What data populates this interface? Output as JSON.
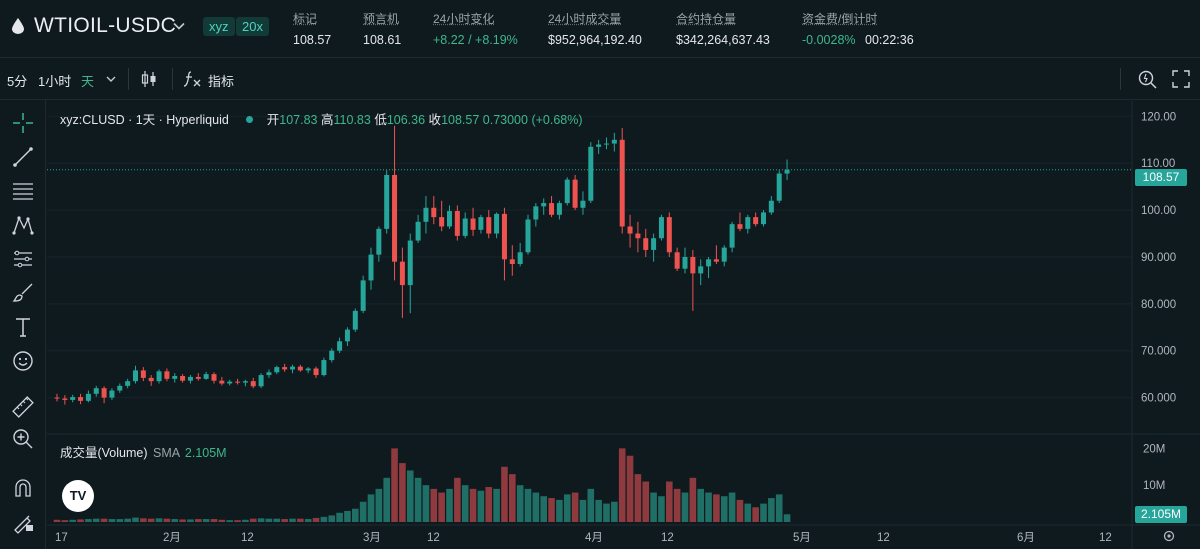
{
  "header": {
    "symbol": "WTIOIL-USDC",
    "badge_type": "xyz",
    "badge_leverage": "20x",
    "stats": [
      {
        "label": "标记",
        "value": "108.57"
      },
      {
        "label": "预言机",
        "value": "108.61"
      },
      {
        "label": "24小时变化",
        "value": "+8.22 / +8.19%"
      },
      {
        "label": "24小时成交量",
        "value": "$952,964,192.40"
      },
      {
        "label": "合约持仓量",
        "value": "$342,264,637.43"
      },
      {
        "label": "资金费/倒计时",
        "value": "-0.0028%",
        "value2": "00:22:36"
      }
    ]
  },
  "toolbar": {
    "interval_5m": "5分",
    "interval_1h": "1小时",
    "interval_day": "天",
    "indicators_label": "指标"
  },
  "legend": {
    "symbol": "xyz:CLUSD · 1天 · Hyperliquid",
    "open_label": "开",
    "open": "107.83",
    "high_label": "高",
    "high": "110.83",
    "low_label": "低",
    "low": "106.36",
    "close_label": "收",
    "close": "108.57",
    "change": "0.73000 (+0.68%)"
  },
  "volume": {
    "label": "成交量(Volume)",
    "sma_label": "SMA",
    "sma_value": "2.105M",
    "current_tag": "2.105M"
  },
  "price_tag": "108.57",
  "colors": {
    "up": "#26a69a",
    "down": "#ef5350",
    "bg": "#0f1a1f"
  },
  "tools": [
    "crosshair-icon",
    "trend-line-icon",
    "fib-icon",
    "pattern-icon",
    "measure-lines-icon",
    "brush-icon",
    "text-icon",
    "emoji-icon",
    "ruler-icon",
    "zoom-in-icon",
    "magnet-icon",
    "lock-draw-icon"
  ],
  "chart_data": {
    "type": "candlestick",
    "price_axis": {
      "ticks": [
        "120.00",
        "110.00",
        "100.00",
        "90.000",
        "80.000",
        "70.000",
        "60.000"
      ],
      "min": 55,
      "max": 122
    },
    "volume_axis": {
      "ticks": [
        "20M",
        "10M"
      ],
      "max": 22
    },
    "time_axis": {
      "ticks": [
        "17",
        "2月",
        "12",
        "3月",
        "12",
        "4月",
        "12",
        "5月",
        "12",
        "6月",
        "12"
      ]
    },
    "candles": [
      {
        "o": 60.0,
        "h": 60.8,
        "l": 59.2,
        "c": 59.8,
        "v": 0.6
      },
      {
        "o": 59.8,
        "h": 60.5,
        "l": 58.5,
        "c": 59.5,
        "v": 0.5
      },
      {
        "o": 59.5,
        "h": 60.6,
        "l": 59.0,
        "c": 60.1,
        "v": 0.6
      },
      {
        "o": 60.1,
        "h": 60.8,
        "l": 58.6,
        "c": 59.3,
        "v": 0.7
      },
      {
        "o": 59.3,
        "h": 61.5,
        "l": 59.0,
        "c": 60.8,
        "v": 0.8
      },
      {
        "o": 60.8,
        "h": 62.5,
        "l": 60.2,
        "c": 62.0,
        "v": 0.9
      },
      {
        "o": 62.0,
        "h": 62.4,
        "l": 58.8,
        "c": 60.0,
        "v": 0.9
      },
      {
        "o": 60.0,
        "h": 62.0,
        "l": 59.5,
        "c": 61.5,
        "v": 0.8
      },
      {
        "o": 61.5,
        "h": 63.0,
        "l": 61.0,
        "c": 62.5,
        "v": 0.8
      },
      {
        "o": 62.5,
        "h": 64.0,
        "l": 62.0,
        "c": 63.5,
        "v": 0.9
      },
      {
        "o": 63.5,
        "h": 66.8,
        "l": 63.0,
        "c": 65.8,
        "v": 1.2
      },
      {
        "o": 65.8,
        "h": 66.5,
        "l": 63.5,
        "c": 64.2,
        "v": 1.0
      },
      {
        "o": 64.2,
        "h": 64.8,
        "l": 62.5,
        "c": 63.5,
        "v": 0.9
      },
      {
        "o": 63.5,
        "h": 66.0,
        "l": 63.0,
        "c": 65.6,
        "v": 1.0
      },
      {
        "o": 65.6,
        "h": 66.2,
        "l": 63.5,
        "c": 64.0,
        "v": 0.9
      },
      {
        "o": 64.0,
        "h": 65.2,
        "l": 63.2,
        "c": 64.6,
        "v": 0.8
      },
      {
        "o": 64.6,
        "h": 65.0,
        "l": 63.2,
        "c": 63.6,
        "v": 0.7
      },
      {
        "o": 63.6,
        "h": 64.8,
        "l": 63.0,
        "c": 64.4,
        "v": 0.7
      },
      {
        "o": 64.4,
        "h": 65.2,
        "l": 63.6,
        "c": 64.0,
        "v": 0.8
      },
      {
        "o": 64.0,
        "h": 65.5,
        "l": 63.8,
        "c": 65.0,
        "v": 0.8
      },
      {
        "o": 65.0,
        "h": 65.4,
        "l": 63.0,
        "c": 63.6,
        "v": 0.8
      },
      {
        "o": 63.6,
        "h": 64.4,
        "l": 62.6,
        "c": 63.0,
        "v": 0.6
      },
      {
        "o": 63.0,
        "h": 63.8,
        "l": 62.6,
        "c": 63.4,
        "v": 0.5
      },
      {
        "o": 63.4,
        "h": 64.0,
        "l": 62.8,
        "c": 63.2,
        "v": 0.5
      },
      {
        "o": 63.2,
        "h": 63.8,
        "l": 62.4,
        "c": 63.5,
        "v": 0.6
      },
      {
        "o": 63.5,
        "h": 64.2,
        "l": 62.0,
        "c": 62.4,
        "v": 0.9
      },
      {
        "o": 62.4,
        "h": 65.2,
        "l": 62.0,
        "c": 64.8,
        "v": 1.0
      },
      {
        "o": 64.8,
        "h": 66.0,
        "l": 64.2,
        "c": 65.4,
        "v": 0.9
      },
      {
        "o": 65.4,
        "h": 66.8,
        "l": 65.0,
        "c": 66.5,
        "v": 0.9
      },
      {
        "o": 66.5,
        "h": 67.2,
        "l": 65.5,
        "c": 66.0,
        "v": 0.8
      },
      {
        "o": 66.0,
        "h": 67.0,
        "l": 65.2,
        "c": 66.6,
        "v": 0.9
      },
      {
        "o": 66.6,
        "h": 67.0,
        "l": 65.5,
        "c": 65.8,
        "v": 0.9
      },
      {
        "o": 65.8,
        "h": 66.5,
        "l": 65.2,
        "c": 66.2,
        "v": 0.8
      },
      {
        "o": 66.2,
        "h": 66.6,
        "l": 64.2,
        "c": 64.8,
        "v": 1.1
      },
      {
        "o": 64.8,
        "h": 68.5,
        "l": 64.5,
        "c": 68.0,
        "v": 1.4
      },
      {
        "o": 68.0,
        "h": 70.5,
        "l": 67.5,
        "c": 70.0,
        "v": 1.8
      },
      {
        "o": 70.0,
        "h": 72.8,
        "l": 69.5,
        "c": 72.0,
        "v": 2.5
      },
      {
        "o": 72.0,
        "h": 75.0,
        "l": 71.0,
        "c": 74.5,
        "v": 3.0
      },
      {
        "o": 74.5,
        "h": 79.0,
        "l": 74.0,
        "c": 78.5,
        "v": 3.6
      },
      {
        "o": 78.5,
        "h": 86.0,
        "l": 78.0,
        "c": 85.0,
        "v": 5.5
      },
      {
        "o": 85.0,
        "h": 92.0,
        "l": 83.0,
        "c": 90.5,
        "v": 7.5
      },
      {
        "o": 90.5,
        "h": 96.5,
        "l": 89.0,
        "c": 96.0,
        "v": 9.0
      },
      {
        "o": 96.0,
        "h": 108.5,
        "l": 95.0,
        "c": 107.5,
        "v": 12.0
      },
      {
        "o": 107.5,
        "h": 118.0,
        "l": 85.0,
        "c": 89.0,
        "v": 20.0
      },
      {
        "o": 89.0,
        "h": 92.0,
        "l": 77.0,
        "c": 84.0,
        "v": 16.0
      },
      {
        "o": 84.0,
        "h": 95.0,
        "l": 78.0,
        "c": 93.5,
        "v": 14.0
      },
      {
        "o": 93.5,
        "h": 99.0,
        "l": 93.0,
        "c": 97.5,
        "v": 12.0
      },
      {
        "o": 97.5,
        "h": 103.0,
        "l": 95.0,
        "c": 100.5,
        "v": 10.0
      },
      {
        "o": 100.5,
        "h": 103.0,
        "l": 97.0,
        "c": 98.5,
        "v": 9.0
      },
      {
        "o": 98.5,
        "h": 102.0,
        "l": 95.5,
        "c": 96.5,
        "v": 8.0
      },
      {
        "o": 96.5,
        "h": 101.0,
        "l": 96.0,
        "c": 99.8,
        "v": 9.0
      },
      {
        "o": 99.8,
        "h": 101.0,
        "l": 93.5,
        "c": 94.5,
        "v": 12.0
      },
      {
        "o": 94.5,
        "h": 99.5,
        "l": 94.0,
        "c": 98.2,
        "v": 10.0
      },
      {
        "o": 98.2,
        "h": 100.5,
        "l": 94.5,
        "c": 95.8,
        "v": 9.0
      },
      {
        "o": 95.8,
        "h": 99.0,
        "l": 95.0,
        "c": 98.5,
        "v": 8.5
      },
      {
        "o": 98.5,
        "h": 100.0,
        "l": 94.0,
        "c": 95.0,
        "v": 9.5
      },
      {
        "o": 95.0,
        "h": 99.5,
        "l": 94.0,
        "c": 99.2,
        "v": 9.0
      },
      {
        "o": 99.2,
        "h": 100.5,
        "l": 85.0,
        "c": 89.5,
        "v": 15.0
      },
      {
        "o": 89.5,
        "h": 92.5,
        "l": 86.0,
        "c": 88.5,
        "v": 13.0
      },
      {
        "o": 88.5,
        "h": 93.0,
        "l": 88.0,
        "c": 91.0,
        "v": 10.0
      },
      {
        "o": 91.0,
        "h": 99.0,
        "l": 90.5,
        "c": 98.0,
        "v": 9.0
      },
      {
        "o": 98.0,
        "h": 101.5,
        "l": 96.5,
        "c": 100.8,
        "v": 8.0
      },
      {
        "o": 100.8,
        "h": 102.5,
        "l": 99.0,
        "c": 101.5,
        "v": 7.0
      },
      {
        "o": 101.5,
        "h": 103.0,
        "l": 98.5,
        "c": 99.0,
        "v": 6.5
      },
      {
        "o": 99.0,
        "h": 102.0,
        "l": 98.0,
        "c": 101.5,
        "v": 6.0
      },
      {
        "o": 101.5,
        "h": 107.0,
        "l": 101.0,
        "c": 106.5,
        "v": 7.5
      },
      {
        "o": 106.5,
        "h": 107.5,
        "l": 100.0,
        "c": 100.5,
        "v": 8.0
      },
      {
        "o": 100.5,
        "h": 104.0,
        "l": 99.0,
        "c": 102.0,
        "v": 6.0
      },
      {
        "o": 102.0,
        "h": 114.5,
        "l": 101.5,
        "c": 113.5,
        "v": 9.0
      },
      {
        "o": 113.5,
        "h": 115.0,
        "l": 112.0,
        "c": 114.0,
        "v": 6.0
      },
      {
        "o": 114.0,
        "h": 115.5,
        "l": 113.0,
        "c": 114.2,
        "v": 5.0
      },
      {
        "o": 114.2,
        "h": 116.5,
        "l": 112.5,
        "c": 115.0,
        "v": 5.5
      },
      {
        "o": 115.0,
        "h": 117.5,
        "l": 95.0,
        "c": 96.5,
        "v": 20.0
      },
      {
        "o": 96.5,
        "h": 99.0,
        "l": 92.0,
        "c": 95.0,
        "v": 18.0
      },
      {
        "o": 95.0,
        "h": 97.5,
        "l": 91.0,
        "c": 94.0,
        "v": 13.0
      },
      {
        "o": 94.0,
        "h": 96.0,
        "l": 90.0,
        "c": 91.5,
        "v": 11.0
      },
      {
        "o": 91.5,
        "h": 95.0,
        "l": 89.0,
        "c": 94.0,
        "v": 8.0
      },
      {
        "o": 94.0,
        "h": 99.0,
        "l": 93.5,
        "c": 98.5,
        "v": 7.0
      },
      {
        "o": 98.5,
        "h": 99.5,
        "l": 90.0,
        "c": 91.0,
        "v": 11.0
      },
      {
        "o": 91.0,
        "h": 92.0,
        "l": 87.0,
        "c": 87.5,
        "v": 9.0
      },
      {
        "o": 87.5,
        "h": 92.0,
        "l": 86.5,
        "c": 90.0,
        "v": 8.0
      },
      {
        "o": 90.0,
        "h": 91.5,
        "l": 78.5,
        "c": 86.5,
        "v": 12.0
      },
      {
        "o": 86.5,
        "h": 89.5,
        "l": 84.0,
        "c": 88.0,
        "v": 9.0
      },
      {
        "o": 88.0,
        "h": 90.0,
        "l": 85.5,
        "c": 89.5,
        "v": 8.0
      },
      {
        "o": 89.5,
        "h": 92.5,
        "l": 88.5,
        "c": 89.0,
        "v": 7.5
      },
      {
        "o": 89.0,
        "h": 92.5,
        "l": 88.0,
        "c": 92.0,
        "v": 7.0
      },
      {
        "o": 92.0,
        "h": 97.5,
        "l": 91.0,
        "c": 97.0,
        "v": 8.0
      },
      {
        "o": 97.0,
        "h": 99.5,
        "l": 95.5,
        "c": 96.0,
        "v": 6.0
      },
      {
        "o": 96.0,
        "h": 99.0,
        "l": 95.0,
        "c": 98.5,
        "v": 5.0
      },
      {
        "o": 98.5,
        "h": 99.5,
        "l": 96.5,
        "c": 97.0,
        "v": 4.0
      },
      {
        "o": 97.0,
        "h": 100.0,
        "l": 96.5,
        "c": 99.5,
        "v": 5.0
      },
      {
        "o": 99.5,
        "h": 103.0,
        "l": 99.0,
        "c": 102.0,
        "v": 6.5
      },
      {
        "o": 102.0,
        "h": 108.5,
        "l": 101.5,
        "c": 107.8,
        "v": 7.5
      },
      {
        "o": 107.8,
        "h": 110.8,
        "l": 106.4,
        "c": 108.6,
        "v": 2.1
      }
    ]
  }
}
